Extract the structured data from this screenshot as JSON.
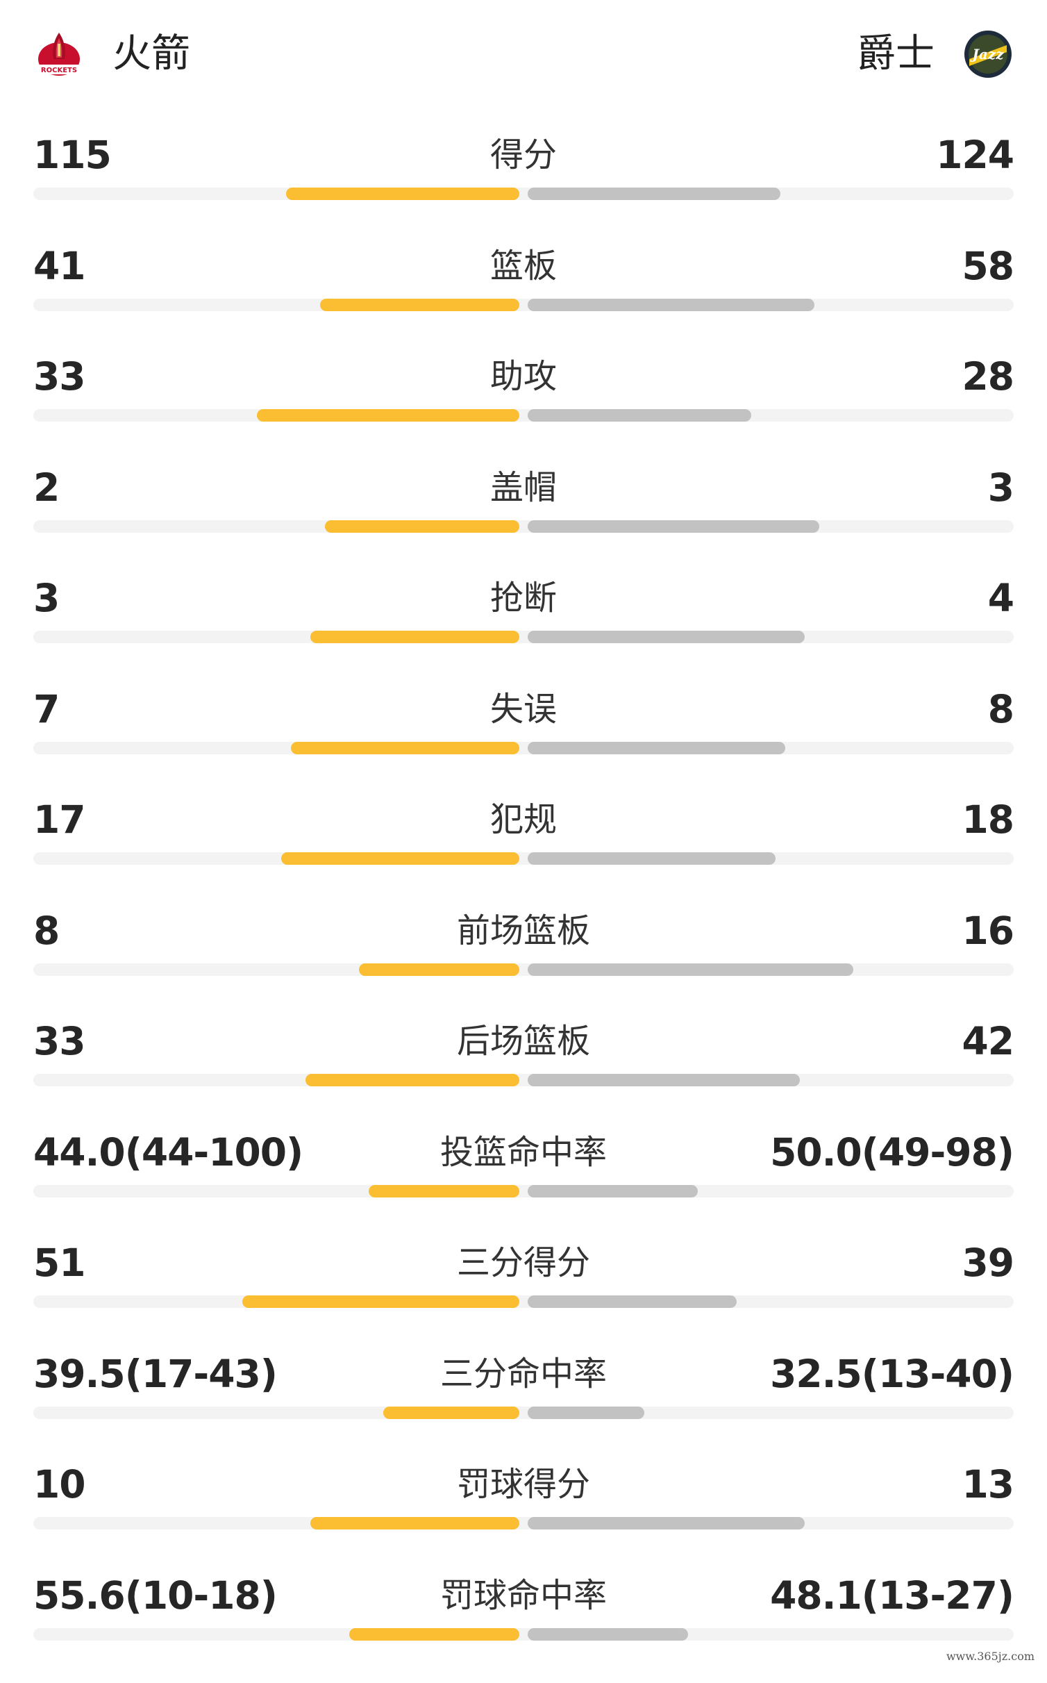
{
  "header": {
    "home_team": "火箭",
    "away_team": "爵士",
    "home_logo_icon": "rockets-logo-icon",
    "away_logo_icon": "jazz-logo-icon"
  },
  "colors": {
    "home_bar": "#fbbd32",
    "away_bar": "#c2c2c2",
    "track": "#f3f3f3"
  },
  "stats": [
    {
      "label": "得分",
      "home": "115",
      "away": "124",
      "home_fill": 0.48,
      "away_fill": 0.52
    },
    {
      "label": "篮板",
      "home": "41",
      "away": "58",
      "home_fill": 0.41,
      "away_fill": 0.59
    },
    {
      "label": "助攻",
      "home": "33",
      "away": "28",
      "home_fill": 0.54,
      "away_fill": 0.46
    },
    {
      "label": "盖帽",
      "home": "2",
      "away": "3",
      "home_fill": 0.4,
      "away_fill": 0.6
    },
    {
      "label": "抢断",
      "home": "3",
      "away": "4",
      "home_fill": 0.43,
      "away_fill": 0.57
    },
    {
      "label": "失误",
      "home": "7",
      "away": "8",
      "home_fill": 0.47,
      "away_fill": 0.53
    },
    {
      "label": "犯规",
      "home": "17",
      "away": "18",
      "home_fill": 0.49,
      "away_fill": 0.51
    },
    {
      "label": "前场篮板",
      "home": "8",
      "away": "16",
      "home_fill": 0.33,
      "away_fill": 0.67
    },
    {
      "label": "后场篮板",
      "home": "33",
      "away": "42",
      "home_fill": 0.44,
      "away_fill": 0.56
    },
    {
      "label": "投篮命中率",
      "home": "44.0(44-100)",
      "away": "50.0(49-98)",
      "home_fill": 0.31,
      "away_fill": 0.35
    },
    {
      "label": "三分得分",
      "home": "51",
      "away": "39",
      "home_fill": 0.57,
      "away_fill": 0.43
    },
    {
      "label": "三分命中率",
      "home": "39.5(17-43)",
      "away": "32.5(13-40)",
      "home_fill": 0.28,
      "away_fill": 0.24
    },
    {
      "label": "罚球得分",
      "home": "10",
      "away": "13",
      "home_fill": 0.43,
      "away_fill": 0.57
    },
    {
      "label": "罚球命中率",
      "home": "55.6(10-18)",
      "away": "48.1(13-27)",
      "home_fill": 0.35,
      "away_fill": 0.33
    }
  ],
  "watermark": "www.365jz.com"
}
